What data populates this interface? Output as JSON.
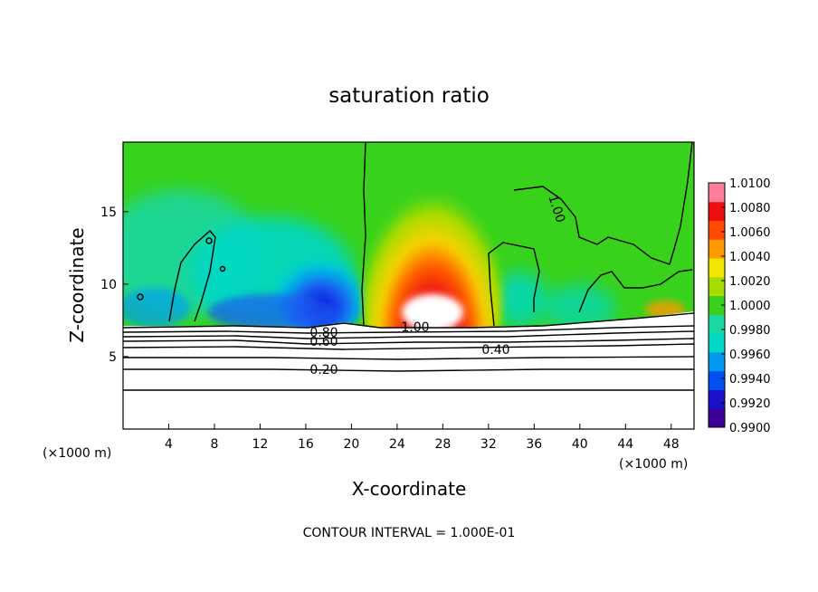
{
  "chart_data": {
    "type": "heatmap",
    "title": "saturation ratio",
    "xlabel": "X-coordinate",
    "ylabel": "Z-coordinate",
    "x_unit_label_left": "(×1000 m)",
    "x_unit_label_right": "(×1000 m)",
    "xlim": [
      0,
      50
    ],
    "ylim": [
      0,
      19.8
    ],
    "x_ticks": [
      4,
      8,
      12,
      16,
      20,
      24,
      28,
      32,
      36,
      40,
      44,
      48
    ],
    "y_ticks": [
      5,
      10,
      15
    ],
    "colorbar": {
      "min": 0.99,
      "max": 1.01,
      "labels": [
        "1.0100",
        "1.0080",
        "1.0060",
        "1.0040",
        "1.0020",
        "1.0000",
        "0.9980",
        "0.9960",
        "0.9940",
        "0.9920",
        "0.9900"
      ],
      "colors": [
        "#3c0096",
        "#1a10c8",
        "#0050f0",
        "#009af0",
        "#00d8c8",
        "#1bd7a0",
        "#38d21c",
        "#a6dc00",
        "#f0e400",
        "#ff9a00",
        "#ff4a00",
        "#ee1010",
        "#ff7e9a"
      ]
    },
    "contour_labels": [
      "1.00",
      "0.80",
      "0.60",
      "0.40",
      "0.20",
      "1.00"
    ],
    "contour_interval": "CONTOUR INTERVAL = 1.000E-01"
  }
}
